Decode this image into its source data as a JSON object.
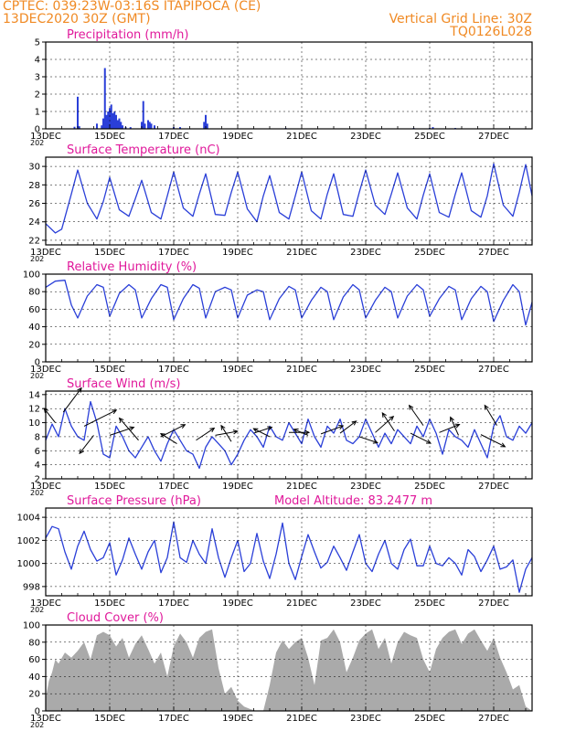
{
  "header": {
    "line1": "CPTEC:   039:23W-03:16S   ITAPIPOCA (CE)",
    "line2": "13DEC2020 30Z (GMT)",
    "vgrid": "Vertical Grid Line: 30Z",
    "code": "TQ0126L028"
  },
  "colors": {
    "header": "#f08a24",
    "title": "#e0199b",
    "line": "#2a3fd8",
    "cloud": "#aaaaaa"
  },
  "x_axis": {
    "ticks": [
      "13DEC",
      "15DEC",
      "17DEC",
      "19DEC",
      "21DEC",
      "23DEC",
      "25DEC",
      "27DEC"
    ],
    "tick_days": [
      0,
      2,
      4,
      6,
      8,
      10,
      12,
      14
    ],
    "range_days": [
      0,
      15.2
    ],
    "year_fragment": "202"
  },
  "chart_data": [
    {
      "id": "precip",
      "type": "bar",
      "title": "Precipitation (mm/h)",
      "ylim": [
        0,
        5
      ],
      "yticks": [
        0,
        1,
        2,
        3,
        4,
        5
      ],
      "bars": [
        [
          0.9,
          0.12
        ],
        [
          1.0,
          1.85
        ],
        [
          1.05,
          0.15
        ],
        [
          1.6,
          0.3
        ],
        [
          1.75,
          0.2
        ],
        [
          1.8,
          0.6
        ],
        [
          1.85,
          3.5
        ],
        [
          1.9,
          0.8
        ],
        [
          1.95,
          1.0
        ],
        [
          2.0,
          1.2
        ],
        [
          2.05,
          1.4
        ],
        [
          2.1,
          0.9
        ],
        [
          2.15,
          1.0
        ],
        [
          2.2,
          0.8
        ],
        [
          2.25,
          0.5
        ],
        [
          2.3,
          0.6
        ],
        [
          2.35,
          0.4
        ],
        [
          2.4,
          0.2
        ],
        [
          2.5,
          0.1
        ],
        [
          2.65,
          0.1
        ],
        [
          3.0,
          0.4
        ],
        [
          3.05,
          1.6
        ],
        [
          3.1,
          0.3
        ],
        [
          3.2,
          0.5
        ],
        [
          3.25,
          0.4
        ],
        [
          3.3,
          0.3
        ],
        [
          3.4,
          0.2
        ],
        [
          4.0,
          0.1
        ],
        [
          4.2,
          0.1
        ],
        [
          4.95,
          0.4
        ],
        [
          5.0,
          0.8
        ],
        [
          5.05,
          0.3
        ],
        [
          7.5,
          0.05
        ],
        [
          11.5,
          0.05
        ],
        [
          12.0,
          0.05
        ],
        [
          12.1,
          0.1
        ],
        [
          12.8,
          0.05
        ]
      ]
    },
    {
      "id": "temp",
      "type": "line",
      "title": "Surface Temperature (nC)",
      "ylim": [
        21.5,
        31
      ],
      "yticks": [
        22,
        24,
        26,
        28,
        30
      ],
      "x": [
        0,
        0.3,
        0.5,
        0.8,
        1.0,
        1.3,
        1.6,
        1.8,
        2.0,
        2.3,
        2.6,
        2.8,
        3.0,
        3.3,
        3.6,
        3.8,
        4.0,
        4.3,
        4.6,
        4.8,
        5.0,
        5.3,
        5.6,
        5.8,
        6.0,
        6.3,
        6.6,
        6.8,
        7.0,
        7.3,
        7.6,
        7.8,
        8.0,
        8.3,
        8.6,
        8.8,
        9.0,
        9.3,
        9.6,
        9.8,
        10.0,
        10.3,
        10.6,
        10.8,
        11.0,
        11.3,
        11.6,
        11.8,
        12.0,
        12.3,
        12.6,
        12.8,
        13.0,
        13.3,
        13.6,
        13.8,
        14.0,
        14.3,
        14.6,
        14.8,
        15.0,
        15.2
      ],
      "values": [
        23.8,
        22.8,
        23.2,
        27.0,
        29.6,
        26.0,
        24.3,
        26.2,
        28.8,
        25.3,
        24.6,
        26.5,
        28.5,
        25.0,
        24.3,
        26.8,
        29.4,
        25.5,
        24.6,
        27.0,
        29.2,
        24.8,
        24.7,
        27.2,
        29.4,
        25.4,
        24.0,
        26.8,
        29.0,
        25.0,
        24.3,
        26.8,
        29.4,
        25.2,
        24.3,
        27.0,
        29.2,
        24.8,
        24.6,
        27.2,
        29.6,
        25.8,
        24.8,
        27.0,
        29.3,
        25.5,
        24.3,
        26.9,
        29.2,
        25.0,
        24.5,
        27.0,
        29.3,
        25.2,
        24.5,
        26.8,
        30.3,
        25.8,
        24.6,
        27.2,
        30.2,
        26.8
      ]
    },
    {
      "id": "rh",
      "type": "line",
      "title": "Relative Humidity (%)",
      "ylim": [
        0,
        100
      ],
      "yticks": [
        0,
        20,
        40,
        60,
        80,
        100
      ],
      "x": [
        0,
        0.3,
        0.6,
        0.8,
        1.0,
        1.3,
        1.6,
        1.8,
        2.0,
        2.3,
        2.6,
        2.8,
        3.0,
        3.3,
        3.6,
        3.8,
        4.0,
        4.3,
        4.6,
        4.8,
        5.0,
        5.3,
        5.6,
        5.8,
        6.0,
        6.3,
        6.6,
        6.8,
        7.0,
        7.3,
        7.6,
        7.8,
        8.0,
        8.3,
        8.6,
        8.8,
        9.0,
        9.3,
        9.6,
        9.8,
        10.0,
        10.3,
        10.6,
        10.8,
        11.0,
        11.3,
        11.6,
        11.8,
        12.0,
        12.3,
        12.6,
        12.8,
        13.0,
        13.3,
        13.6,
        13.8,
        14.0,
        14.3,
        14.6,
        14.8,
        15.0,
        15.2
      ],
      "values": [
        85,
        92,
        93,
        65,
        50,
        75,
        88,
        85,
        52,
        78,
        88,
        82,
        50,
        72,
        88,
        85,
        48,
        72,
        88,
        84,
        50,
        80,
        85,
        82,
        50,
        76,
        82,
        80,
        48,
        72,
        86,
        82,
        50,
        70,
        85,
        80,
        48,
        74,
        88,
        82,
        50,
        70,
        85,
        80,
        50,
        75,
        88,
        82,
        52,
        72,
        86,
        82,
        48,
        72,
        86,
        80,
        46,
        70,
        88,
        80,
        42,
        68
      ]
    },
    {
      "id": "wind",
      "type": "line",
      "title": "Surface Wind (m/s)",
      "ylim": [
        2,
        14.5
      ],
      "yticks": [
        2,
        4,
        6,
        8,
        10,
        12,
        14
      ],
      "x": [
        0,
        0.2,
        0.4,
        0.6,
        0.8,
        1.0,
        1.2,
        1.4,
        1.6,
        1.8,
        2.0,
        2.2,
        2.4,
        2.6,
        2.8,
        3.0,
        3.2,
        3.4,
        3.6,
        3.8,
        4.0,
        4.2,
        4.4,
        4.6,
        4.8,
        5.0,
        5.2,
        5.4,
        5.6,
        5.8,
        6.0,
        6.2,
        6.4,
        6.6,
        6.8,
        7.0,
        7.2,
        7.4,
        7.6,
        7.8,
        8.0,
        8.2,
        8.4,
        8.6,
        8.8,
        9.0,
        9.2,
        9.4,
        9.6,
        9.8,
        10.0,
        10.2,
        10.4,
        10.6,
        10.8,
        11.0,
        11.2,
        11.4,
        11.6,
        11.8,
        12.0,
        12.2,
        12.4,
        12.6,
        12.8,
        13.0,
        13.2,
        13.4,
        13.6,
        13.8,
        14.0,
        14.2,
        14.4,
        14.6,
        14.8,
        15.0,
        15.2
      ],
      "values": [
        7.5,
        9.8,
        8.0,
        12.0,
        9.5,
        8.0,
        7.5,
        13.0,
        10.0,
        5.5,
        5.0,
        9.5,
        8.0,
        6.0,
        5.0,
        6.5,
        8.0,
        6.0,
        4.5,
        7.0,
        9.0,
        7.5,
        6.0,
        5.5,
        3.5,
        6.5,
        8.0,
        7.0,
        6.0,
        4.0,
        5.5,
        7.5,
        9.0,
        8.0,
        6.5,
        9.5,
        8.0,
        7.5,
        10.0,
        8.5,
        7.0,
        10.5,
        8.0,
        6.5,
        9.5,
        8.5,
        10.5,
        7.5,
        7.0,
        8.0,
        10.5,
        8.5,
        6.5,
        8.5,
        7.0,
        9.0,
        8.0,
        7.0,
        9.5,
        8.0,
        10.5,
        8.5,
        5.5,
        9.0,
        8.0,
        7.5,
        6.5,
        9.0,
        7.0,
        5.0,
        9.5,
        11.0,
        8.0,
        7.5,
        9.5,
        8.5,
        10.0
      ],
      "vectors": [
        [
          0.3,
          10,
          -0.55,
          0.7
        ],
        [
          0.55,
          11.5,
          0.9,
          1.2
        ],
        [
          1.2,
          9.5,
          1.6,
          0.8
        ],
        [
          1.5,
          8.2,
          -0.7,
          -0.9
        ],
        [
          2.0,
          8.2,
          1.2,
          0.4
        ],
        [
          2.9,
          7.5,
          -0.95,
          1.1
        ],
        [
          3.6,
          8.0,
          1.2,
          0.6
        ],
        [
          4.1,
          7.0,
          -0.8,
          0.5
        ],
        [
          4.7,
          7.5,
          0.9,
          0.6
        ],
        [
          5.3,
          8.2,
          1.1,
          0.2
        ],
        [
          5.8,
          7.3,
          -0.5,
          0.8
        ],
        [
          6.5,
          8.5,
          0.9,
          0.3
        ],
        [
          7.0,
          8.0,
          -0.8,
          0.4
        ],
        [
          7.6,
          8.6,
          1.0,
          0.0
        ],
        [
          8.2,
          8.2,
          -0.7,
          0.3
        ],
        [
          8.6,
          8.4,
          1.1,
          0.4
        ],
        [
          9.2,
          8.5,
          0.8,
          0.6
        ],
        [
          9.8,
          8.0,
          0.9,
          -0.3
        ],
        [
          10.3,
          8.6,
          0.9,
          0.8
        ],
        [
          10.9,
          8.8,
          -0.6,
          0.9
        ],
        [
          11.4,
          8.5,
          1.0,
          -0.5
        ],
        [
          11.8,
          9.6,
          -0.7,
          1.0
        ],
        [
          12.3,
          8.6,
          1.0,
          0.4
        ],
        [
          12.9,
          8.2,
          -0.4,
          0.9
        ],
        [
          13.6,
          8.3,
          1.2,
          -0.6
        ],
        [
          14.1,
          9.6,
          -0.6,
          1.0
        ]
      ]
    },
    {
      "id": "press",
      "type": "line",
      "title": "Surface Pressure (hPa)",
      "subtitle": "Model Altitude: 83.2477  m",
      "ylim": [
        997.2,
        1004.8
      ],
      "yticks": [
        998,
        1000,
        1002,
        1004
      ],
      "x": [
        0,
        0.2,
        0.4,
        0.6,
        0.8,
        1.0,
        1.2,
        1.4,
        1.6,
        1.8,
        2.0,
        2.2,
        2.4,
        2.6,
        2.8,
        3.0,
        3.2,
        3.4,
        3.6,
        3.8,
        4.0,
        4.2,
        4.4,
        4.6,
        4.8,
        5.0,
        5.2,
        5.4,
        5.6,
        5.8,
        6.0,
        6.2,
        6.4,
        6.6,
        6.8,
        7.0,
        7.2,
        7.4,
        7.6,
        7.8,
        8.0,
        8.2,
        8.4,
        8.6,
        8.8,
        9.0,
        9.2,
        9.4,
        9.6,
        9.8,
        10.0,
        10.2,
        10.4,
        10.6,
        10.8,
        11.0,
        11.2,
        11.4,
        11.6,
        11.8,
        12.0,
        12.2,
        12.4,
        12.6,
        12.8,
        13.0,
        13.2,
        13.4,
        13.6,
        13.8,
        14.0,
        14.2,
        14.4,
        14.6,
        14.8,
        15.0,
        15.2
      ],
      "values": [
        1002.2,
        1003.2,
        1003.0,
        1001.0,
        999.5,
        1001.5,
        1002.8,
        1001.2,
        1000.2,
        1000.5,
        1001.8,
        999.0,
        1000.3,
        1002.2,
        1000.8,
        999.5,
        1001.0,
        1002.0,
        999.2,
        1000.5,
        1003.6,
        1000.5,
        1000.1,
        1002.0,
        1000.8,
        1000.0,
        1003.0,
        1000.5,
        998.8,
        1000.5,
        1002.0,
        999.3,
        1000.0,
        1002.6,
        1000.2,
        998.7,
        1000.8,
        1003.5,
        1000.0,
        998.6,
        1000.6,
        1002.5,
        1001.0,
        999.6,
        1000.1,
        1001.5,
        1000.5,
        999.4,
        1001.0,
        1002.5,
        1000.0,
        999.3,
        1000.8,
        1002.0,
        1000.0,
        999.5,
        1001.2,
        1002.1,
        999.8,
        999.8,
        1001.5,
        1000.0,
        999.8,
        1000.5,
        1000.0,
        999.0,
        1001.2,
        1000.6,
        999.3,
        1000.3,
        1001.5,
        999.5,
        999.7,
        1000.3,
        997.5,
        999.5,
        1000.5
      ]
    },
    {
      "id": "cloud",
      "type": "area",
      "title": "Cloud Cover (%)",
      "ylim": [
        0,
        100
      ],
      "yticks": [
        0,
        20,
        40,
        60,
        80,
        100
      ],
      "x": [
        0,
        0.1,
        0.2,
        0.3,
        0.4,
        0.6,
        0.8,
        1.0,
        1.2,
        1.4,
        1.6,
        1.8,
        2.0,
        2.2,
        2.4,
        2.6,
        2.8,
        3.0,
        3.2,
        3.4,
        3.6,
        3.8,
        4.0,
        4.2,
        4.4,
        4.6,
        4.8,
        5.0,
        5.2,
        5.4,
        5.6,
        5.8,
        6.0,
        6.2,
        6.4,
        6.6,
        6.8,
        7.0,
        7.2,
        7.4,
        7.6,
        7.8,
        8.0,
        8.2,
        8.4,
        8.6,
        8.8,
        9.0,
        9.2,
        9.4,
        9.6,
        9.8,
        10.0,
        10.2,
        10.4,
        10.6,
        10.8,
        11.0,
        11.2,
        11.4,
        11.6,
        11.8,
        12.0,
        12.2,
        12.4,
        12.6,
        12.8,
        13.0,
        13.2,
        13.4,
        13.6,
        13.8,
        14.0,
        14.2,
        14.4,
        14.6,
        14.8,
        15.0,
        15.2
      ],
      "values": [
        15,
        35,
        45,
        60,
        55,
        68,
        62,
        70,
        80,
        60,
        88,
        92,
        88,
        75,
        85,
        62,
        78,
        88,
        72,
        55,
        68,
        40,
        75,
        90,
        80,
        62,
        85,
        92,
        95,
        50,
        20,
        28,
        12,
        5,
        2,
        0,
        0,
        30,
        68,
        82,
        72,
        80,
        85,
        62,
        30,
        82,
        85,
        95,
        80,
        45,
        62,
        82,
        90,
        95,
        72,
        85,
        55,
        80,
        92,
        88,
        85,
        60,
        45,
        72,
        85,
        92,
        95,
        78,
        90,
        95,
        82,
        70,
        85,
        62,
        45,
        25,
        30,
        5,
        0
      ]
    }
  ]
}
